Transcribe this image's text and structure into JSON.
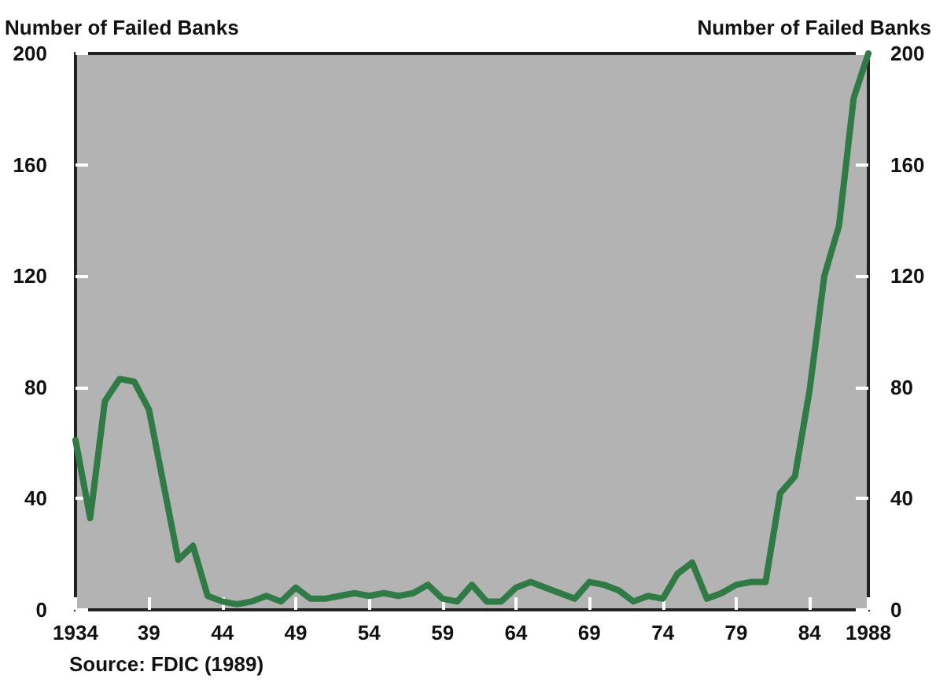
{
  "chart_data": {
    "type": "line",
    "ylabel": "Number of Failed Banks",
    "y2label": "Number of Failed Banks",
    "annotations": [
      "Source: FDIC (1989)"
    ],
    "x": [
      1934,
      1935,
      1936,
      1937,
      1938,
      1939,
      1940,
      1941,
      1942,
      1943,
      1944,
      1945,
      1946,
      1947,
      1948,
      1949,
      1950,
      1951,
      1952,
      1953,
      1954,
      1955,
      1956,
      1957,
      1958,
      1959,
      1960,
      1961,
      1962,
      1963,
      1964,
      1965,
      1966,
      1967,
      1968,
      1969,
      1970,
      1971,
      1972,
      1973,
      1974,
      1975,
      1976,
      1977,
      1978,
      1979,
      1980,
      1981,
      1982,
      1983,
      1984,
      1985,
      1986,
      1987,
      1988
    ],
    "series": [
      {
        "color": "#2f7a45",
        "values": [
          61,
          33,
          75,
          83,
          82,
          72,
          45,
          18,
          23,
          5,
          3,
          2,
          3,
          5,
          3,
          8,
          4,
          4,
          5,
          6,
          5,
          6,
          5,
          6,
          9,
          4,
          3,
          9,
          3,
          3,
          8,
          10,
          8,
          6,
          4,
          10,
          9,
          7,
          3,
          5,
          4,
          13,
          17,
          4,
          6,
          9,
          10,
          10,
          42,
          48,
          79,
          120,
          138,
          184,
          200
        ]
      }
    ],
    "xlim": [
      1934,
      1988
    ],
    "xticks": [
      1934,
      {
        "value": 1939,
        "label": "39"
      },
      {
        "value": 1944,
        "label": "44"
      },
      {
        "value": 1949,
        "label": "49"
      },
      {
        "value": 1954,
        "label": "54"
      },
      {
        "value": 1959,
        "label": "59"
      },
      {
        "value": 1964,
        "label": "64"
      },
      {
        "value": 1969,
        "label": "69"
      },
      {
        "value": 1974,
        "label": "74"
      },
      {
        "value": 1979,
        "label": "79"
      },
      {
        "value": 1984,
        "label": "84"
      },
      1988
    ],
    "ylim": [
      0,
      200
    ],
    "yticks": [
      0,
      40,
      80,
      120,
      160,
      200
    ],
    "y2lim": [
      0,
      200
    ],
    "y2ticks": [
      0,
      40,
      80,
      120,
      160,
      200
    ],
    "grid": false,
    "marker": "none",
    "line_style": "solid"
  }
}
